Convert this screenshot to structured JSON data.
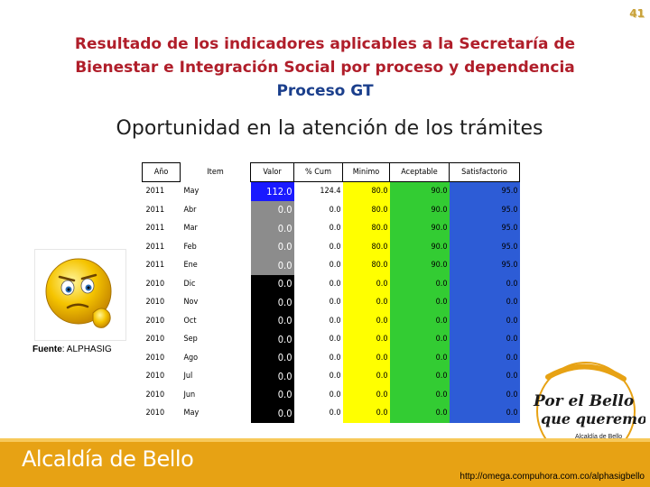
{
  "page_number": "41",
  "title": {
    "line1": "Resultado de los indicadores aplicables a la Secretaría de",
    "line2": "Bienestar e Integración Social por proceso y dependencia",
    "line3": "Proceso GT"
  },
  "heading": "Oportunidad en la atención de los trámites",
  "table": {
    "headers": [
      "Año",
      "Item",
      "Valor",
      "% Cum",
      "Minimo",
      "Aceptable",
      "Satisfactorio"
    ],
    "rows": [
      [
        "2011",
        "May",
        "112.0",
        "124.4",
        "80.0",
        "90.0",
        "95.0"
      ],
      [
        "2011",
        "Abr",
        "0.0",
        "0.0",
        "80.0",
        "90.0",
        "95.0"
      ],
      [
        "2011",
        "Mar",
        "0.0",
        "0.0",
        "80.0",
        "90.0",
        "95.0"
      ],
      [
        "2011",
        "Feb",
        "0.0",
        "0.0",
        "80.0",
        "90.0",
        "95.0"
      ],
      [
        "2011",
        "Ene",
        "0.0",
        "0.0",
        "80.0",
        "90.0",
        "95.0"
      ],
      [
        "2010",
        "Dic",
        "0.0",
        "0.0",
        "0.0",
        "0.0",
        "0.0"
      ],
      [
        "2010",
        "Nov",
        "0.0",
        "0.0",
        "0.0",
        "0.0",
        "0.0"
      ],
      [
        "2010",
        "Oct",
        "0.0",
        "0.0",
        "0.0",
        "0.0",
        "0.0"
      ],
      [
        "2010",
        "Sep",
        "0.0",
        "0.0",
        "0.0",
        "0.0",
        "0.0"
      ],
      [
        "2010",
        "Ago",
        "0.0",
        "0.0",
        "0.0",
        "0.0",
        "0.0"
      ],
      [
        "2010",
        "Jul",
        "0.0",
        "0.0",
        "0.0",
        "0.0",
        "0.0"
      ],
      [
        "2010",
        "Jun",
        "0.0",
        "0.0",
        "0.0",
        "0.0",
        "0.0"
      ],
      [
        "2010",
        "May",
        "0.0",
        "0.0",
        "0.0",
        "0.0",
        "0.0"
      ]
    ],
    "valor_colors": [
      "#1a1aff",
      "#8c8c8c",
      "#8c8c8c",
      "#8c8c8c",
      "#8c8c8c",
      "#000000",
      "#000000",
      "#000000",
      "#000000",
      "#000000",
      "#000000",
      "#000000",
      "#000000"
    ],
    "valor_text_colors": [
      "#ffffff",
      "#ffffff",
      "#ffffff",
      "#ffffff",
      "#ffffff",
      "#ffffff",
      "#ffffff",
      "#ffffff",
      "#ffffff",
      "#ffffff",
      "#ffffff",
      "#ffffff",
      "#ffffff"
    ],
    "band_colors": {
      "cum": "#ffffff",
      "minimo": "#ffff00",
      "aceptable": "#33cc33",
      "satisfactorio": "#2d5cd6"
    }
  },
  "source": {
    "label": "Fuente",
    "value": ": ALPHASIG"
  },
  "footer": {
    "text": "Alcaldía de Bello",
    "band_color": "#e7a214"
  },
  "logo": {
    "line1": "Por el Bello",
    "line2": "que queremos",
    "line3": "Alcaldía de Bello"
  },
  "url": "http://omega.compuhora.com.co/alphasigbello"
}
